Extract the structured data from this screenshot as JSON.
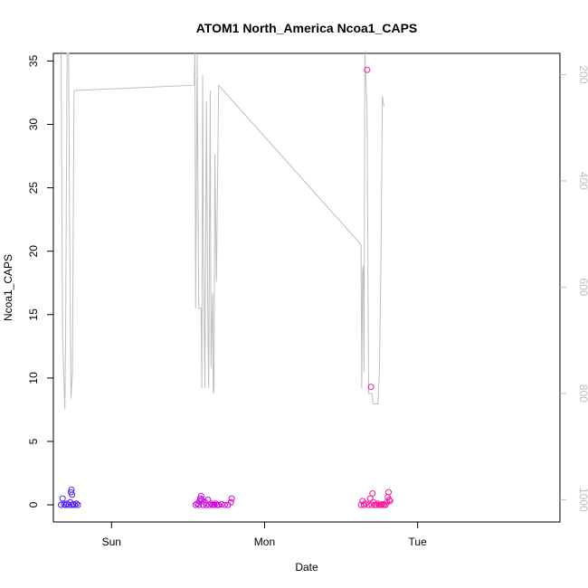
{
  "chart_data": {
    "type": "scatter",
    "title": "ATOM1 North_America Ncoa1_CAPS",
    "xlabel": "Date",
    "ylabel": "Ncoa1_CAPS",
    "x_units": "days (0 = Sun 00:00)",
    "xlim": [
      -0.38,
      2.93
    ],
    "ylim": [
      -1.35,
      35.6
    ],
    "x_ticks": [
      {
        "value": 0,
        "label": "Sun"
      },
      {
        "value": 1,
        "label": "Mon"
      },
      {
        "value": 2,
        "label": "Tue"
      }
    ],
    "y_ticks": [
      0,
      5,
      10,
      15,
      20,
      25,
      30,
      35
    ],
    "y2_ticks": [
      200,
      400,
      600,
      800,
      1000
    ],
    "y2lim": [
      1042,
      160
    ],
    "colors": {
      "points_start": "#4b1fff",
      "points_mid": "#e000e0",
      "points_end": "#ff1493",
      "secondary_line": "#bebebe",
      "axis": "#000000"
    },
    "points": [
      {
        "x": -0.33,
        "y": 0.0
      },
      {
        "x": -0.32,
        "y": 0.5
      },
      {
        "x": -0.31,
        "y": 0.05
      },
      {
        "x": -0.3,
        "y": 0.0
      },
      {
        "x": -0.29,
        "y": 0.1
      },
      {
        "x": -0.28,
        "y": 0.0
      },
      {
        "x": -0.27,
        "y": 0.2
      },
      {
        "x": -0.26,
        "y": 0.0
      },
      {
        "x": -0.265,
        "y": 1.0
      },
      {
        "x": -0.262,
        "y": 1.2
      },
      {
        "x": -0.258,
        "y": 0.8
      },
      {
        "x": -0.25,
        "y": 0.05
      },
      {
        "x": -0.24,
        "y": 0.0
      },
      {
        "x": -0.23,
        "y": 0.1
      },
      {
        "x": -0.22,
        "y": 0.0
      },
      {
        "x": 0.55,
        "y": 0.0
      },
      {
        "x": 0.56,
        "y": 0.1
      },
      {
        "x": 0.57,
        "y": 0.0
      },
      {
        "x": 0.575,
        "y": 0.3
      },
      {
        "x": 0.58,
        "y": 0.5
      },
      {
        "x": 0.585,
        "y": 0.7
      },
      {
        "x": 0.59,
        "y": 0.4
      },
      {
        "x": 0.6,
        "y": 0.0
      },
      {
        "x": 0.61,
        "y": 0.2
      },
      {
        "x": 0.62,
        "y": 0.0
      },
      {
        "x": 0.63,
        "y": 0.4
      },
      {
        "x": 0.64,
        "y": 0.0
      },
      {
        "x": 0.65,
        "y": 0.1
      },
      {
        "x": 0.66,
        "y": 0.0
      },
      {
        "x": 0.67,
        "y": 0.0
      },
      {
        "x": 0.68,
        "y": 0.1
      },
      {
        "x": 0.69,
        "y": 0.0
      },
      {
        "x": 0.7,
        "y": 0.0
      },
      {
        "x": 0.72,
        "y": 0.05
      },
      {
        "x": 0.74,
        "y": 0.0
      },
      {
        "x": 0.76,
        "y": 0.0
      },
      {
        "x": 0.78,
        "y": 0.2
      },
      {
        "x": 0.785,
        "y": 0.5
      },
      {
        "x": 1.63,
        "y": 0.0
      },
      {
        "x": 1.64,
        "y": 0.3
      },
      {
        "x": 1.65,
        "y": 0.0
      },
      {
        "x": 1.66,
        "y": 0.1
      },
      {
        "x": 1.67,
        "y": 34.3
      },
      {
        "x": 1.68,
        "y": 0.0
      },
      {
        "x": 1.69,
        "y": 0.5
      },
      {
        "x": 1.695,
        "y": 9.3
      },
      {
        "x": 1.7,
        "y": 0.0
      },
      {
        "x": 1.705,
        "y": 0.9
      },
      {
        "x": 1.71,
        "y": 0.2
      },
      {
        "x": 1.72,
        "y": 0.0
      },
      {
        "x": 1.73,
        "y": 0.0
      },
      {
        "x": 1.74,
        "y": 0.1
      },
      {
        "x": 1.75,
        "y": 0.0
      },
      {
        "x": 1.76,
        "y": 0.0
      },
      {
        "x": 1.77,
        "y": 0.05
      },
      {
        "x": 1.78,
        "y": 0.0
      },
      {
        "x": 1.79,
        "y": 0.0
      },
      {
        "x": 1.8,
        "y": 0.2
      },
      {
        "x": 1.805,
        "y": 0.6
      },
      {
        "x": 1.81,
        "y": 1.0
      },
      {
        "x": 1.815,
        "y": 0.4
      },
      {
        "x": 1.82,
        "y": 0.3
      }
    ],
    "secondary_line": [
      {
        "x": -0.33,
        "y2": 160
      },
      {
        "x": -0.32,
        "y2": 690
      },
      {
        "x": -0.31,
        "y2": 780
      },
      {
        "x": -0.305,
        "y2": 830
      },
      {
        "x": -0.3,
        "y2": 700
      },
      {
        "x": -0.29,
        "y2": 160
      },
      {
        "x": -0.28,
        "y2": 160
      },
      {
        "x": -0.275,
        "y2": 450
      },
      {
        "x": -0.265,
        "y2": 810
      },
      {
        "x": -0.26,
        "y2": 780
      },
      {
        "x": -0.255,
        "y2": 760
      },
      {
        "x": -0.245,
        "y2": 230
      },
      {
        "x": 0.54,
        "y2": 220
      },
      {
        "x": 0.545,
        "y2": 160
      },
      {
        "x": 0.55,
        "y2": 640
      },
      {
        "x": 0.56,
        "y2": 160
      },
      {
        "x": 0.57,
        "y2": 640
      },
      {
        "x": 0.585,
        "y2": 640
      },
      {
        "x": 0.59,
        "y2": 790
      },
      {
        "x": 0.595,
        "y2": 200
      },
      {
        "x": 0.6,
        "y2": 500
      },
      {
        "x": 0.61,
        "y2": 790
      },
      {
        "x": 0.62,
        "y2": 250
      },
      {
        "x": 0.63,
        "y2": 690
      },
      {
        "x": 0.635,
        "y2": 790
      },
      {
        "x": 0.645,
        "y2": 230
      },
      {
        "x": 0.65,
        "y2": 750
      },
      {
        "x": 0.66,
        "y2": 610
      },
      {
        "x": 0.665,
        "y2": 800
      },
      {
        "x": 0.67,
        "y2": 790
      },
      {
        "x": 0.675,
        "y2": 350
      },
      {
        "x": 0.685,
        "y2": 590
      },
      {
        "x": 0.69,
        "y2": 480
      },
      {
        "x": 0.7,
        "y2": 220
      },
      {
        "x": 1.63,
        "y2": 520
      },
      {
        "x": 1.635,
        "y2": 790
      },
      {
        "x": 1.64,
        "y2": 570
      },
      {
        "x": 1.645,
        "y2": 560
      },
      {
        "x": 1.65,
        "y2": 760
      },
      {
        "x": 1.655,
        "y2": 160
      },
      {
        "x": 1.67,
        "y2": 270
      },
      {
        "x": 1.68,
        "y2": 800
      },
      {
        "x": 1.7,
        "y2": 800
      },
      {
        "x": 1.71,
        "y2": 820
      },
      {
        "x": 1.74,
        "y2": 820
      },
      {
        "x": 1.75,
        "y2": 760
      },
      {
        "x": 1.76,
        "y2": 550
      },
      {
        "x": 1.77,
        "y2": 240
      },
      {
        "x": 1.78,
        "y2": 260
      }
    ]
  }
}
